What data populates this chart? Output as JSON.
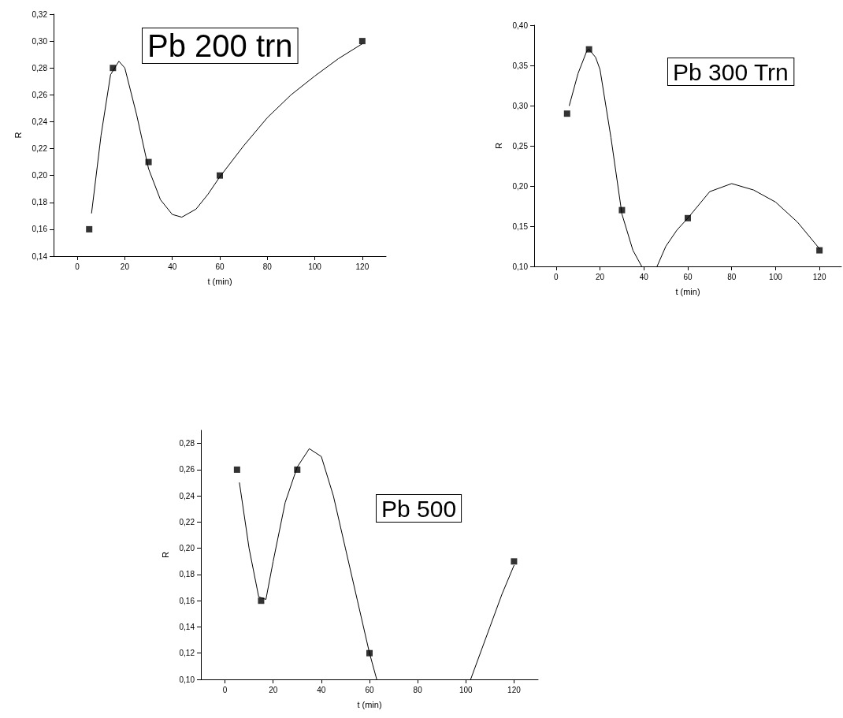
{
  "chart_data": [
    {
      "type": "scatter",
      "xlabel": "t (min)",
      "ylabel": "R",
      "annotations": [
        "Pb 200 trn"
      ],
      "marker": "square",
      "grid": false,
      "xlim": [
        -10,
        130
      ],
      "xticks": [
        0,
        20,
        40,
        60,
        80,
        100,
        120
      ],
      "ylim": [
        0.14,
        0.32
      ],
      "yticks": [
        {
          "value": 0.14,
          "label": "0,14"
        },
        {
          "value": 0.16,
          "label": "0,16"
        },
        {
          "value": 0.18,
          "label": "0,18"
        },
        {
          "value": 0.2,
          "label": "0,20"
        },
        {
          "value": 0.22,
          "label": "0,22"
        },
        {
          "value": 0.24,
          "label": "0,24"
        },
        {
          "value": 0.26,
          "label": "0,26"
        },
        {
          "value": 0.28,
          "label": "0,28"
        },
        {
          "value": 0.3,
          "label": "0,30"
        },
        {
          "value": 0.32,
          "label": "0,32"
        }
      ],
      "series": [
        {
          "color": "#000000",
          "x": [
            5,
            15,
            30,
            60,
            120
          ],
          "values": [
            0.16,
            0.28,
            0.21,
            0.2,
            0.3
          ]
        },
        {
          "type": "line",
          "color": "#000000",
          "marker": "none",
          "x": [
            6,
            10,
            14,
            17.5,
            20,
            25,
            30,
            35,
            40,
            44,
            50,
            55,
            60,
            70,
            80,
            90,
            100,
            110,
            120
          ],
          "values": [
            0.172,
            0.23,
            0.275,
            0.285,
            0.28,
            0.245,
            0.205,
            0.182,
            0.171,
            0.169,
            0.175,
            0.186,
            0.199,
            0.222,
            0.243,
            0.26,
            0.274,
            0.287,
            0.298
          ]
        }
      ]
    },
    {
      "type": "scatter",
      "xlabel": "t (min)",
      "ylabel": "R",
      "annotations": [
        "Pb 300 Trn"
      ],
      "marker": "square",
      "grid": false,
      "xlim": [
        -10,
        130
      ],
      "xticks": [
        0,
        20,
        40,
        60,
        80,
        100,
        120
      ],
      "ylim": [
        0.1,
        0.4
      ],
      "yticks": [
        {
          "value": 0.1,
          "label": "0,10"
        },
        {
          "value": 0.15,
          "label": "0,15"
        },
        {
          "value": 0.2,
          "label": "0,20"
        },
        {
          "value": 0.25,
          "label": "0,25"
        },
        {
          "value": 0.3,
          "label": "0,30"
        },
        {
          "value": 0.35,
          "label": "0,35"
        },
        {
          "value": 0.4,
          "label": "0,40"
        }
      ],
      "series": [
        {
          "color": "#000000",
          "x": [
            5,
            15,
            30,
            60,
            120
          ],
          "values": [
            0.29,
            0.37,
            0.17,
            0.16,
            0.12
          ]
        },
        {
          "type": "line",
          "color": "#000000",
          "marker": "none",
          "x": [
            6,
            10,
            14,
            15,
            18,
            20,
            25,
            30,
            35,
            39,
            42,
            46,
            50,
            55,
            60,
            70,
            80,
            90,
            100,
            110,
            120
          ],
          "values": [
            0.3,
            0.34,
            0.368,
            0.37,
            0.36,
            0.345,
            0.26,
            0.165,
            0.12,
            0.1,
            null,
            0.1,
            0.125,
            0.145,
            0.16,
            0.193,
            0.203,
            0.195,
            0.18,
            0.155,
            0.122
          ]
        }
      ]
    },
    {
      "type": "scatter",
      "xlabel": "t (min)",
      "ylabel": "R",
      "annotations": [
        "Pb 500"
      ],
      "marker": "square",
      "grid": false,
      "xlim": [
        -10,
        130
      ],
      "xticks": [
        0,
        20,
        40,
        60,
        80,
        100,
        120
      ],
      "ylim": [
        0.1,
        0.29
      ],
      "yticks": [
        {
          "value": 0.1,
          "label": "0,10"
        },
        {
          "value": 0.12,
          "label": "0,12"
        },
        {
          "value": 0.14,
          "label": "0,14"
        },
        {
          "value": 0.16,
          "label": "0,16"
        },
        {
          "value": 0.18,
          "label": "0,18"
        },
        {
          "value": 0.2,
          "label": "0,20"
        },
        {
          "value": 0.22,
          "label": "0,22"
        },
        {
          "value": 0.24,
          "label": "0,24"
        },
        {
          "value": 0.26,
          "label": "0,26"
        },
        {
          "value": 0.28,
          "label": "0,28"
        }
      ],
      "series": [
        {
          "color": "#000000",
          "x": [
            5,
            15,
            30,
            60,
            120
          ],
          "values": [
            0.26,
            0.16,
            0.26,
            0.12,
            0.19
          ]
        },
        {
          "type": "line",
          "color": "#000000",
          "marker": "none",
          "x": [
            6,
            10,
            14,
            17,
            20,
            25,
            30,
            35,
            40,
            45,
            50,
            55,
            60,
            63,
            80,
            102,
            110,
            115,
            120
          ],
          "values": [
            0.25,
            0.2,
            0.163,
            0.161,
            0.19,
            0.235,
            0.262,
            0.276,
            0.27,
            0.24,
            0.2,
            0.16,
            0.12,
            0.1,
            null,
            0.1,
            0.14,
            0.165,
            0.187
          ]
        }
      ]
    }
  ]
}
